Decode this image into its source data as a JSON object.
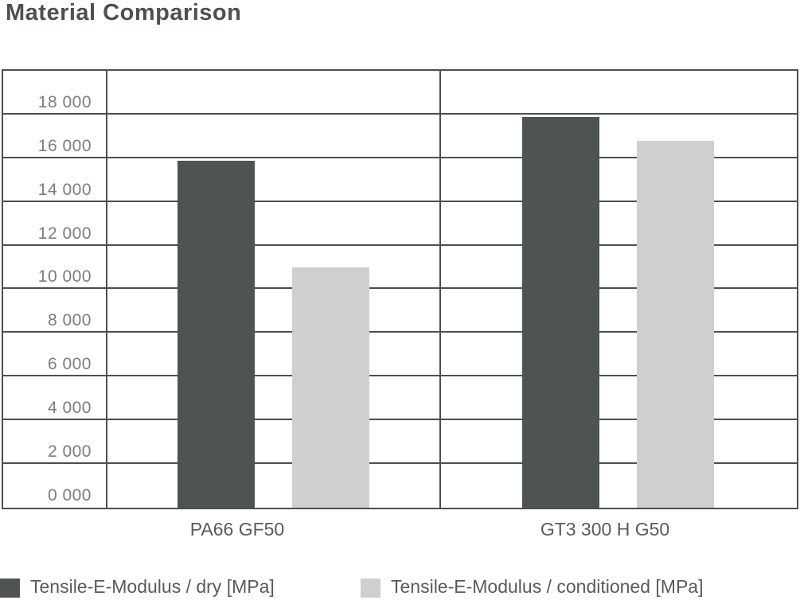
{
  "title": "Material Comparison",
  "chart_data": {
    "type": "bar",
    "title": "Material Comparison",
    "categories": [
      "PA66 GF50",
      "GT3 300 H G50"
    ],
    "series": [
      {
        "name": "Tensile-E-Modulus / dry [MPa]",
        "color": "#4d5452",
        "values": [
          15900,
          17900
        ]
      },
      {
        "name": "Tensile-E-Modulus / conditioned [MPa]",
        "color": "#cdd0cf",
        "values": [
          11000,
          16800
        ]
      }
    ],
    "xlabel": "",
    "ylabel": "",
    "ylim": [
      0,
      20000
    ],
    "ytick_step": 2000,
    "ytick_labels_top_to_bottom": [
      "18 000",
      "16 000",
      "14 000",
      "12 000",
      "10 000",
      "8 000",
      "6 000",
      "4 000",
      "2 000",
      "0 000"
    ],
    "grid": "horizontal",
    "legend_position": "bottom"
  },
  "colors": {
    "grid_line": "#4b504e",
    "bar_dry": "#4d5452",
    "bar_conditioned": "#cdd0cf",
    "ytick_text": "#7a7e7d",
    "category_text": "#575c5a",
    "title_text": "#4a514e",
    "background": "#ffffff"
  }
}
